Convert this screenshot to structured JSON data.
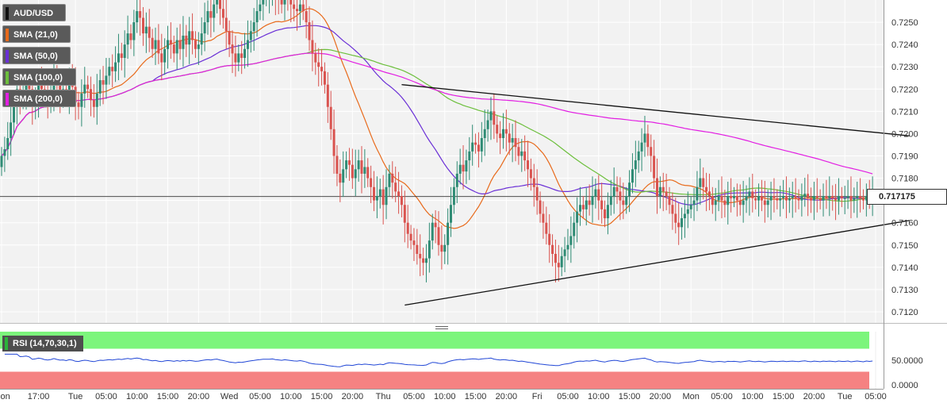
{
  "instrument": "AUD/USD",
  "legend": [
    {
      "label": "AUD/USD",
      "color": "#000000"
    },
    {
      "label": "SMA (21,0)",
      "color": "#e86a1b"
    },
    {
      "label": "SMA (50,0)",
      "color": "#6a2fd6"
    },
    {
      "label": "SMA (100,0)",
      "color": "#6cbf3c"
    },
    {
      "label": "SMA (200,0)",
      "color": "#e21ee2"
    }
  ],
  "last_price": "0.717175",
  "rsi": {
    "label": "RSI (14,70,30,1)",
    "tick_labels": [
      "50.0000",
      "0.0000"
    ],
    "overbought_color": "#7cf57c",
    "oversold_color": "#f58282"
  },
  "colors": {
    "up": "#2e8b74",
    "down": "#d9534f",
    "trendline": "#111111"
  },
  "chart_data": {
    "type": "candlestick",
    "title": "AUD/USD",
    "y_ticks": [
      "0.7250",
      "0.7240",
      "0.7230",
      "0.7220",
      "0.7210",
      "0.7200",
      "0.7190",
      "0.7180",
      "0.7170",
      "0.7160",
      "0.7150",
      "0.7140",
      "0.7130",
      "0.7120"
    ],
    "ylim": [
      0.7115,
      0.726
    ],
    "x_tick_labels": [
      "Mon",
      "17:00",
      "Tue",
      "05:00",
      "10:00",
      "15:00",
      "20:00",
      "Wed",
      "05:00",
      "10:00",
      "15:00",
      "20:00",
      "Thu",
      "05:00",
      "10:00",
      "15:00",
      "20:00",
      "Fri",
      "05:00",
      "10:00",
      "15:00",
      "20:00",
      "Mon",
      "05:00",
      "10:00",
      "15:00",
      "20:00",
      "Tue",
      "05:00"
    ],
    "x_tick_index": [
      0,
      12,
      24,
      34,
      44,
      54,
      64,
      74,
      84,
      94,
      104,
      114,
      124,
      134,
      144,
      154,
      164,
      174,
      184,
      194,
      204,
      214,
      224,
      234,
      244,
      254,
      264,
      274,
      284
    ],
    "closes": [
      0.719,
      0.7193,
      0.7198,
      0.7205,
      0.7213,
      0.722,
      0.7215,
      0.7218,
      0.7222,
      0.722,
      0.7212,
      0.7216,
      0.7222,
      0.722,
      0.7216,
      0.7214,
      0.7218,
      0.7226,
      0.7222,
      0.7218,
      0.722,
      0.7216,
      0.7224,
      0.7221,
      0.7214,
      0.7212,
      0.7218,
      0.7222,
      0.722,
      0.7215,
      0.7212,
      0.7218,
      0.7224,
      0.7222,
      0.7226,
      0.723,
      0.7228,
      0.7232,
      0.7236,
      0.7234,
      0.724,
      0.7245,
      0.7242,
      0.725,
      0.7255,
      0.7252,
      0.7245,
      0.7248,
      0.7243,
      0.7238,
      0.7242,
      0.7236,
      0.7232,
      0.7238,
      0.7242,
      0.724,
      0.7236,
      0.7242,
      0.7238,
      0.7244,
      0.724,
      0.7246,
      0.7242,
      0.7238,
      0.724,
      0.7245,
      0.725,
      0.7255,
      0.7252,
      0.7258,
      0.7262,
      0.7256,
      0.7252,
      0.7246,
      0.724,
      0.7236,
      0.7232,
      0.7236,
      0.7234,
      0.7238,
      0.7242,
      0.7246,
      0.725,
      0.7255,
      0.7258,
      0.7262,
      0.7262,
      0.7263,
      0.7265,
      0.7262,
      0.726,
      0.7258,
      0.7262,
      0.726,
      0.7258,
      0.7256,
      0.7255,
      0.7258,
      0.7255,
      0.725,
      0.7242,
      0.7236,
      0.7232,
      0.723,
      0.7228,
      0.7222,
      0.7212,
      0.7202,
      0.719,
      0.7182,
      0.7178,
      0.7184,
      0.7188,
      0.7186,
      0.718,
      0.7184,
      0.7188,
      0.7182,
      0.7185,
      0.718,
      0.7176,
      0.717,
      0.7172,
      0.7175,
      0.7168,
      0.7176,
      0.7182,
      0.7178,
      0.7174,
      0.7172,
      0.7168,
      0.716,
      0.7155,
      0.7152,
      0.715,
      0.7146,
      0.7144,
      0.7142,
      0.7144,
      0.7152,
      0.716,
      0.7158,
      0.715,
      0.7147,
      0.715,
      0.716,
      0.7168,
      0.7176,
      0.7182,
      0.7186,
      0.7183,
      0.7188,
      0.7192,
      0.7196,
      0.7195,
      0.7192,
      0.7198,
      0.7202,
      0.7206,
      0.721,
      0.7204,
      0.72,
      0.7198,
      0.7202,
      0.72,
      0.7196,
      0.7198,
      0.7194,
      0.719,
      0.7192,
      0.7188,
      0.7184,
      0.718,
      0.7176,
      0.717,
      0.7164,
      0.716,
      0.7155,
      0.715,
      0.7146,
      0.7142,
      0.714,
      0.7145,
      0.7148,
      0.715,
      0.7154,
      0.716,
      0.7165,
      0.7168,
      0.7166,
      0.717,
      0.7168,
      0.7172,
      0.7175,
      0.717,
      0.7166,
      0.7162,
      0.7168,
      0.7172,
      0.7176,
      0.7174,
      0.717,
      0.7168,
      0.7172,
      0.7178,
      0.7184,
      0.7188,
      0.7192,
      0.7196,
      0.72,
      0.7194,
      0.719,
      0.718,
      0.7172,
      0.7176,
      0.7174,
      0.7172,
      0.7168,
      0.7164,
      0.716,
      0.7158,
      0.7162,
      0.7164,
      0.7166,
      0.7168,
      0.717,
      0.7176,
      0.718,
      0.7176,
      0.7174,
      0.7172,
      0.7168,
      0.717,
      0.7172,
      0.717,
      0.7168,
      0.7172,
      0.7171,
      0.7172,
      0.717,
      0.7168,
      0.717,
      0.7172,
      0.7174,
      0.7171,
      0.717,
      0.7172,
      0.717,
      0.7168,
      0.717,
      0.7172,
      0.7171,
      0.717,
      0.7171,
      0.7172,
      0.717,
      0.7171,
      0.7172,
      0.7171,
      0.717,
      0.7172,
      0.7173,
      0.7171,
      0.717,
      0.7172,
      0.7171,
      0.717,
      0.7172,
      0.7171,
      0.7172,
      0.7171,
      0.717,
      0.7172,
      0.7171,
      0.7171,
      0.7172,
      0.717,
      0.7171,
      0.7172,
      0.7171,
      0.717,
      0.7172,
      0.7171,
      0.7172
    ],
    "trendlines": [
      {
        "from": [
          130,
          0.7222
        ],
        "to": [
          295,
          0.7199
        ]
      },
      {
        "from": [
          131,
          0.7123
        ],
        "to": [
          295,
          0.7161
        ]
      }
    ],
    "rsi_range": [
      0,
      100
    ],
    "rsi_levels": [
      70,
      30
    ],
    "grid": true
  }
}
